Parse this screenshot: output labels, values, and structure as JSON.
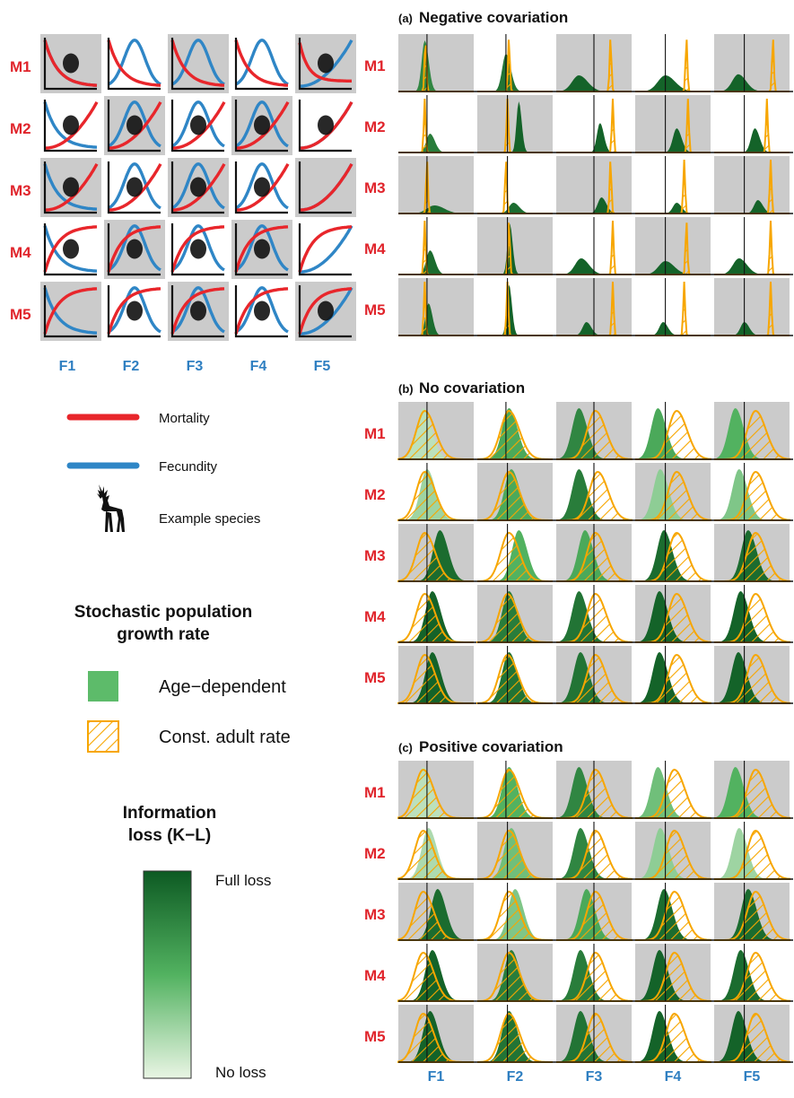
{
  "row_labels": [
    "M1",
    "M2",
    "M3",
    "M4",
    "M5"
  ],
  "col_labels": [
    "F1",
    "F2",
    "F3",
    "F4",
    "F5"
  ],
  "grid_shading": [
    [
      1,
      0,
      1,
      0,
      1
    ],
    [
      0,
      1,
      0,
      1,
      0
    ],
    [
      1,
      0,
      1,
      0,
      1
    ],
    [
      0,
      1,
      0,
      1,
      0
    ],
    [
      1,
      0,
      1,
      0,
      1
    ]
  ],
  "panels": [
    {
      "tag": "(a)",
      "title": "Negative covariation",
      "letter": "a"
    },
    {
      "tag": "(b)",
      "title": "No covariation",
      "letter": "b"
    },
    {
      "tag": "(c)",
      "title": "Positive covariation",
      "letter": "c"
    }
  ],
  "schematic": {
    "mortality_shapes": [
      "decline",
      "decline",
      "decline",
      "decline",
      "decline-flat",
      "rise",
      "rise",
      "rise",
      "rise",
      "rise",
      "rise",
      "rise",
      "rise",
      "rise",
      "rise",
      "saturate",
      "saturate",
      "saturate",
      "saturate",
      "saturate",
      "saturate",
      "saturate",
      "saturate",
      "saturate",
      "saturate"
    ],
    "fecundity_shapes": [
      "decline",
      "hump",
      "hump",
      "hump",
      "rise",
      "decline",
      "hump",
      "hump",
      "hump",
      "rise",
      "decline",
      "hump",
      "hump",
      "hump",
      "rise",
      "decline",
      "hump",
      "hump",
      "hump",
      "rise",
      "decline",
      "hump",
      "hump",
      "hump",
      "rise"
    ]
  },
  "legend": {
    "mortality_label": "Mortality",
    "fecundity_label": "Fecundity",
    "species_label": "Example species",
    "growth_title_line1": "Stochastic population",
    "growth_title_line2": "growth rate",
    "age_dependent_label": "Age−dependent",
    "const_adult_label": "Const. adult rate",
    "info_title_line1": "Information",
    "info_title_line2": "loss (K−L)",
    "full_loss_label": "Full loss",
    "no_loss_label": "No loss"
  },
  "colors": {
    "mortality": "#e8262b",
    "fecundity": "#2f86c6",
    "const_adult": "#f7a600",
    "grey_cell": "#cbcbcb",
    "row_label": "#e0242b",
    "col_label": "#2f7fc1",
    "loss_full": "#0d5a23",
    "loss_none": "#e9f5e4"
  },
  "chart_data": {
    "type": "density-grid",
    "note_loss_scale": "0 = no loss, 1 = full loss",
    "panel_a": {
      "green_center": [
        [
          0.35,
          0.38,
          0.3,
          0.4,
          0.32
        ],
        [
          0.42,
          0.55,
          0.58,
          0.55,
          0.54
        ],
        [
          0.48,
          0.48,
          0.6,
          0.55,
          0.58
        ],
        [
          0.42,
          0.43,
          0.33,
          0.4,
          0.33
        ],
        [
          0.4,
          0.42,
          0.4,
          0.37,
          0.4
        ]
      ],
      "green_width": [
        [
          0.04,
          0.05,
          0.09,
          0.1,
          0.08
        ],
        [
          0.05,
          0.03,
          0.04,
          0.05,
          0.05
        ],
        [
          0.1,
          0.06,
          0.05,
          0.05,
          0.05
        ],
        [
          0.05,
          0.03,
          0.08,
          0.09,
          0.08
        ],
        [
          0.04,
          0.03,
          0.05,
          0.05,
          0.05
        ]
      ],
      "green_peak": [
        [
          0.95,
          0.7,
          0.3,
          0.3,
          0.32
        ],
        [
          0.35,
          0.95,
          0.55,
          0.45,
          0.45
        ],
        [
          0.15,
          0.2,
          0.3,
          0.2,
          0.25
        ],
        [
          0.45,
          0.95,
          0.3,
          0.25,
          0.3
        ],
        [
          0.6,
          0.95,
          0.25,
          0.25,
          0.25
        ]
      ],
      "orange_center": [
        [
          0.36,
          0.42,
          0.72,
          0.68,
          0.78
        ],
        [
          0.35,
          0.4,
          0.75,
          0.7,
          0.7
        ],
        [
          0.38,
          0.38,
          0.72,
          0.65,
          0.75
        ],
        [
          0.35,
          0.42,
          0.75,
          0.68,
          0.75
        ],
        [
          0.35,
          0.4,
          0.75,
          0.65,
          0.75
        ]
      ],
      "loss": [
        [
          0.75,
          0.85,
          0.95,
          0.95,
          0.95
        ],
        [
          0.8,
          0.95,
          0.95,
          0.95,
          0.95
        ],
        [
          0.9,
          0.9,
          0.95,
          0.95,
          0.95
        ],
        [
          0.9,
          0.95,
          0.95,
          0.95,
          0.95
        ],
        [
          0.9,
          0.95,
          0.95,
          0.95,
          0.95
        ]
      ]
    },
    "panel_b": {
      "green_center": [
        [
          0.33,
          0.42,
          0.3,
          0.3,
          0.28
        ],
        [
          0.38,
          0.45,
          0.3,
          0.33,
          0.33
        ],
        [
          0.55,
          0.55,
          0.38,
          0.38,
          0.45
        ],
        [
          0.45,
          0.42,
          0.3,
          0.32,
          0.35
        ],
        [
          0.45,
          0.42,
          0.32,
          0.32,
          0.32
        ]
      ],
      "orange_center": [
        [
          0.35,
          0.42,
          0.52,
          0.55,
          0.55
        ],
        [
          0.35,
          0.42,
          0.55,
          0.55,
          0.55
        ],
        [
          0.35,
          0.42,
          0.52,
          0.55,
          0.55
        ],
        [
          0.35,
          0.4,
          0.52,
          0.55,
          0.55
        ],
        [
          0.35,
          0.4,
          0.52,
          0.55,
          0.55
        ]
      ],
      "loss": [
        [
          0.15,
          0.55,
          0.75,
          0.55,
          0.5
        ],
        [
          0.25,
          0.55,
          0.8,
          0.3,
          0.35
        ],
        [
          0.9,
          0.5,
          0.55,
          0.9,
          0.9
        ],
        [
          0.95,
          0.8,
          0.85,
          0.95,
          0.95
        ],
        [
          0.95,
          0.85,
          0.85,
          0.95,
          0.95
        ]
      ]
    },
    "panel_c": {
      "green_center": [
        [
          0.33,
          0.42,
          0.3,
          0.3,
          0.28
        ],
        [
          0.4,
          0.45,
          0.32,
          0.33,
          0.33
        ],
        [
          0.52,
          0.5,
          0.4,
          0.38,
          0.45
        ],
        [
          0.45,
          0.45,
          0.32,
          0.32,
          0.35
        ],
        [
          0.42,
          0.42,
          0.32,
          0.32,
          0.32
        ]
      ],
      "orange_center": [
        [
          0.33,
          0.42,
          0.52,
          0.52,
          0.55
        ],
        [
          0.33,
          0.42,
          0.52,
          0.52,
          0.55
        ],
        [
          0.33,
          0.42,
          0.52,
          0.52,
          0.55
        ],
        [
          0.33,
          0.42,
          0.52,
          0.52,
          0.55
        ],
        [
          0.33,
          0.42,
          0.52,
          0.52,
          0.55
        ]
      ],
      "loss": [
        [
          0.15,
          0.5,
          0.75,
          0.4,
          0.5
        ],
        [
          0.2,
          0.4,
          0.75,
          0.3,
          0.25
        ],
        [
          0.9,
          0.35,
          0.55,
          0.9,
          0.9
        ],
        [
          0.95,
          0.8,
          0.8,
          0.95,
          0.9
        ],
        [
          0.95,
          0.85,
          0.85,
          0.95,
          0.95
        ]
      ]
    },
    "vertical_ref_line": [
      [
        0.38,
        0.38,
        0.5,
        0.4,
        0.4
      ],
      [
        0.38,
        0.4,
        0.5,
        0.4,
        0.4
      ],
      [
        0.38,
        0.4,
        0.5,
        0.4,
        0.4
      ],
      [
        0.38,
        0.4,
        0.5,
        0.4,
        0.4
      ],
      [
        0.38,
        0.4,
        0.5,
        0.4,
        0.4
      ]
    ]
  }
}
